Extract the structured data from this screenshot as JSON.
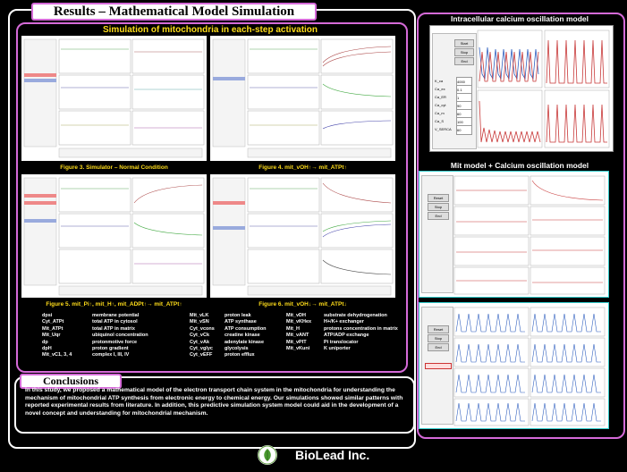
{
  "header": {
    "title": "Results – Mathematical Model Simulation"
  },
  "simulation": {
    "title": "Simulation of mitochondria in each-step activation"
  },
  "figures": [
    {
      "caption": "Figure 3. Simulator – Normal Condition"
    },
    {
      "caption": "Figure 4. mit_vOH↑→ mit_ATPt↑"
    },
    {
      "caption": "Figure 5. mit_Pi↑, mit_H↑, mit_ADPt↑→ mit_ATPt↑"
    },
    {
      "caption": "Figure 6. mit_vOH↓→ mit_ATPt↓"
    }
  ],
  "glossary": {
    "col1": [
      {
        "term": "dpsi",
        "desc": "membrane potential"
      },
      {
        "term": "Cyt_ATPt",
        "desc": "total ATP in cytosol"
      },
      {
        "term": "Mit_ATPt",
        "desc": "total ATP in matrix"
      },
      {
        "term": "Mit_Uqr",
        "desc": "ubiquinol concentration"
      },
      {
        "term": "dp",
        "desc": "protonmotive force"
      },
      {
        "term": "dpH",
        "desc": "proton gradient"
      },
      {
        "term": "Mit_vC1, 3, 4",
        "desc": "complex I, III, IV"
      }
    ],
    "col2": [
      {
        "term": "Mit_vLK",
        "desc": "proton leak"
      },
      {
        "term": "Mit_vSN",
        "desc": "ATP synthase"
      },
      {
        "term": "Cyt_vcons",
        "desc": "ATP consumption"
      },
      {
        "term": "Cyt_vCk",
        "desc": "creatine kinase"
      },
      {
        "term": "Cyt_vAk",
        "desc": "adenylate kinase"
      },
      {
        "term": "Cyt_vglyc",
        "desc": "glycolysis"
      },
      {
        "term": "Cyt_vEFF",
        "desc": "proton efflux"
      }
    ],
    "col3": [
      {
        "term": "Mit_vDH",
        "desc": "substrate dehydrogenation"
      },
      {
        "term": "Mit_vKHex",
        "desc": "H+/K+ exchanger"
      },
      {
        "term": "Mit_H",
        "desc": "protons concentration in matrix"
      },
      {
        "term": "Mit_vANT",
        "desc": "ATP/ADP exchange"
      },
      {
        "term": "Mit_vPIT",
        "desc": "Pi translocator"
      },
      {
        "term": "Mit_vKuni",
        "desc": "K uniporter"
      }
    ]
  },
  "conclusions": {
    "title": "Conclusions",
    "text": "In this study, we proposed a mathematical model of the electron transport chain system in the mitochondria for understanding the mechanism of mitochondrial ATP synthesis from electronic energy to chemical energy. Our simulations showed similar patterns with reported experimental results from literature. In addition, this predictive simulation system model could aid in the development of a novel concept and understanding for mitochondrial mechanism."
  },
  "right": {
    "calcium_title": "Intracellular calcium oscillation model",
    "mitca_title": "Mit model + Calcium oscillation model",
    "calcium_buttons": [
      "Start",
      "Stop",
      "End"
    ],
    "calcium_params": [
      {
        "name": "K_ca",
        "value": "4000"
      },
      {
        "name": "Ca_ex",
        "value": "0.1"
      },
      {
        "name": "Ca_ER",
        "value": "1"
      },
      {
        "name": "Ca_cyt",
        "value": "90"
      },
      {
        "name": "Ca_m",
        "value": "60"
      },
      {
        "name": "Ca_S",
        "value": "100"
      },
      {
        "name": "V_SERCA",
        "value": "60"
      }
    ],
    "mitca_buttons": [
      "Reset",
      "Stop",
      "End"
    ]
  },
  "footer": {
    "company": "BioLead Inc."
  },
  "colors": {
    "accent": "#d56ad8",
    "caption": "#ffdd1a",
    "calcium_line": "#c83a3a",
    "mit_line": "#2f5fbf"
  }
}
